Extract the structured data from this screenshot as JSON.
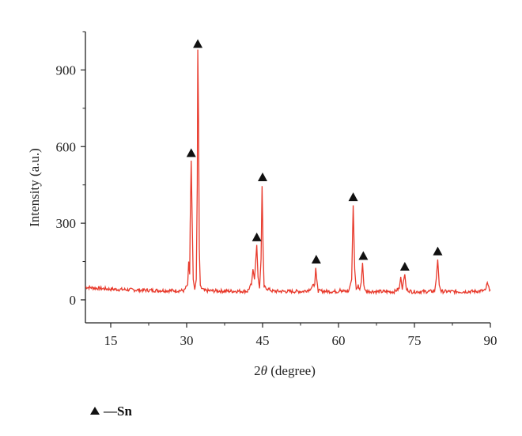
{
  "chart_data": {
    "type": "line",
    "xlabel_prefix": "2",
    "xlabel_symbol": "θ",
    "xlabel_suffix": " (degree)",
    "ylabel": "Intensity (a.u.)",
    "xlim": [
      10,
      90
    ],
    "ylim": [
      -90,
      1050
    ],
    "x_ticks": [
      15,
      30,
      45,
      60,
      75,
      90
    ],
    "y_ticks": [
      0,
      300,
      600,
      900
    ],
    "grid": false,
    "line_color": "#e8392b",
    "baseline": 45,
    "series": [
      {
        "values_description": "XRD pattern",
        "points": [
          [
            10,
            50
          ],
          [
            12,
            46
          ],
          [
            15,
            42
          ],
          [
            18,
            40
          ],
          [
            21,
            38
          ],
          [
            24,
            37
          ],
          [
            27,
            36
          ],
          [
            29.5,
            36
          ],
          [
            30.2,
            60
          ],
          [
            30.4,
            150
          ],
          [
            30.6,
            100
          ],
          [
            30.7,
            300
          ],
          [
            30.9,
            545
          ],
          [
            31.1,
            300
          ],
          [
            31.3,
            80
          ],
          [
            31.6,
            40
          ],
          [
            31.9,
            80
          ],
          [
            32.1,
            450
          ],
          [
            32.2,
            980
          ],
          [
            32.35,
            700
          ],
          [
            32.5,
            200
          ],
          [
            32.7,
            50
          ],
          [
            33.5,
            36
          ],
          [
            36,
            35
          ],
          [
            39,
            34
          ],
          [
            42,
            34
          ],
          [
            42.8,
            60
          ],
          [
            43.1,
            120
          ],
          [
            43.4,
            80
          ],
          [
            43.6,
            140
          ],
          [
            43.85,
            215
          ],
          [
            44.1,
            90
          ],
          [
            44.4,
            45
          ],
          [
            44.7,
            160
          ],
          [
            44.9,
            445
          ],
          [
            45.1,
            200
          ],
          [
            45.3,
            50
          ],
          [
            47,
            34
          ],
          [
            50,
            33
          ],
          [
            53,
            33
          ],
          [
            54.2,
            40
          ],
          [
            55.3,
            60
          ],
          [
            55.5,
            125
          ],
          [
            55.7,
            80
          ],
          [
            56,
            35
          ],
          [
            58,
            33
          ],
          [
            60,
            33
          ],
          [
            60.3,
            45
          ],
          [
            60.6,
            33
          ],
          [
            62,
            34
          ],
          [
            62.6,
            80
          ],
          [
            62.9,
            370
          ],
          [
            63.2,
            120
          ],
          [
            63.5,
            40
          ],
          [
            63.9,
            55
          ],
          [
            64.2,
            40
          ],
          [
            64.5,
            70
          ],
          [
            64.75,
            145
          ],
          [
            65,
            60
          ],
          [
            65.3,
            34
          ],
          [
            68,
            32
          ],
          [
            71,
            32
          ],
          [
            72,
            45
          ],
          [
            72.3,
            90
          ],
          [
            72.6,
            40
          ],
          [
            72.8,
            70
          ],
          [
            73.1,
            100
          ],
          [
            73.4,
            40
          ],
          [
            74.5,
            32
          ],
          [
            77,
            32
          ],
          [
            79,
            34
          ],
          [
            79.3,
            80
          ],
          [
            79.6,
            158
          ],
          [
            79.9,
            60
          ],
          [
            80.3,
            33
          ],
          [
            84,
            32
          ],
          [
            87,
            33
          ],
          [
            89,
            36
          ],
          [
            89.4,
            65
          ],
          [
            89.7,
            45
          ],
          [
            90,
            40
          ]
        ]
      }
    ],
    "markers": [
      {
        "x": 30.9,
        "y": 575
      },
      {
        "x": 32.2,
        "y": 1002
      },
      {
        "x": 43.85,
        "y": 245
      },
      {
        "x": 45.0,
        "y": 480
      },
      {
        "x": 55.6,
        "y": 158
      },
      {
        "x": 62.9,
        "y": 402
      },
      {
        "x": 64.9,
        "y": 172
      },
      {
        "x": 73.1,
        "y": 130
      },
      {
        "x": 79.6,
        "y": 190
      }
    ],
    "marker_shape": "triangle",
    "legend": {
      "label": "—Sn",
      "placement": "bottom-left"
    }
  }
}
